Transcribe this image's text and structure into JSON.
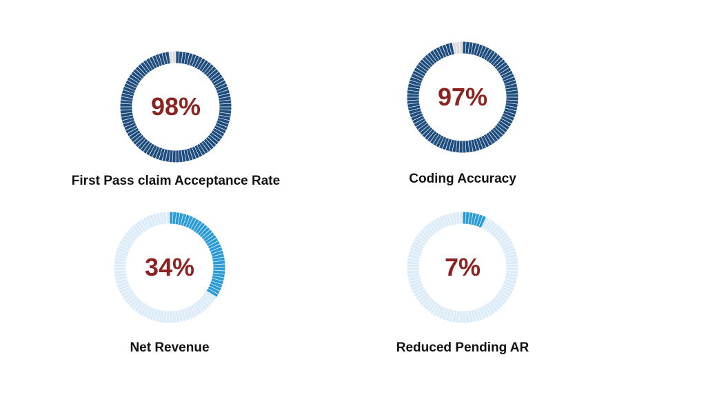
{
  "chart_data": [
    {
      "type": "gauge",
      "value": 98,
      "max": 100,
      "display": "98%",
      "label": "First Pass claim Acceptance Rate",
      "fill_color": "#1f4e7e",
      "track_color": "#dcdcdc"
    },
    {
      "type": "gauge",
      "value": 97,
      "max": 100,
      "display": "97%",
      "label": "Coding Accuracy",
      "fill_color": "#1f4e7e",
      "track_color": "#dcdcdc"
    },
    {
      "type": "gauge",
      "value": 34,
      "max": 100,
      "display": "34%",
      "label": "Net Revenue",
      "fill_color": "#2a9bd4",
      "track_color": "#dcebf8"
    },
    {
      "type": "gauge",
      "value": 7,
      "max": 100,
      "display": "7%",
      "label": "Reduced Pending AR",
      "fill_color": "#2a9bd4",
      "track_color": "#dcebf8"
    }
  ]
}
